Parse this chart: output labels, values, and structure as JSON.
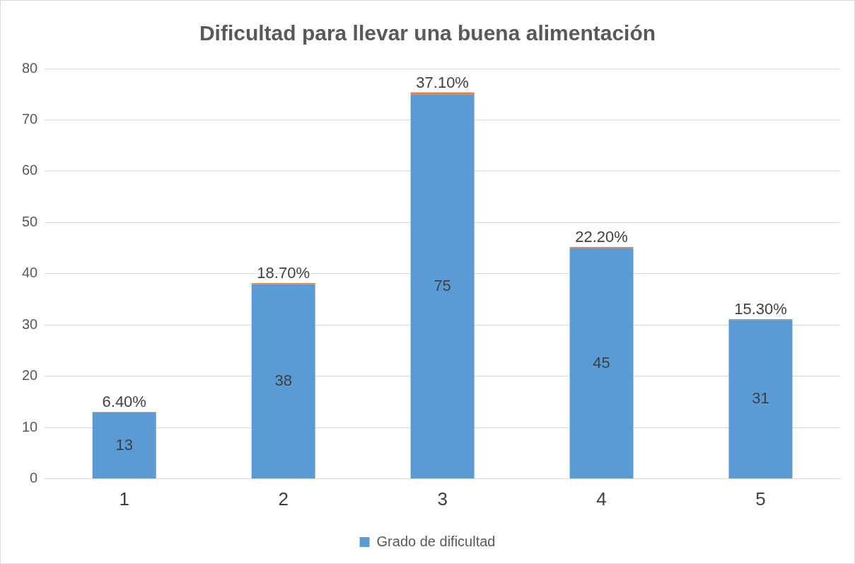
{
  "chart_data": {
    "type": "bar",
    "title": "Dificultad para llevar una buena alimentación",
    "categories": [
      "1",
      "2",
      "3",
      "4",
      "5"
    ],
    "stacked": true,
    "ylim": [
      0,
      80
    ],
    "yticks": [
      0,
      10,
      20,
      30,
      40,
      50,
      60,
      70,
      80
    ],
    "grid": "y",
    "legend": "bottom",
    "series": [
      {
        "name": "Grado de dificultad",
        "color": "#5b9bd5",
        "values": [
          13,
          38,
          75,
          45,
          31
        ],
        "value_labels": [
          "13",
          "38",
          "75",
          "45",
          "31"
        ]
      },
      {
        "color": "#ed7d31",
        "values": [
          0.064,
          0.187,
          0.371,
          0.222,
          0.153
        ],
        "value_labels": [
          "6.40%",
          "18.70%",
          "37.10%",
          "22.20%",
          "15.30%"
        ]
      }
    ]
  }
}
